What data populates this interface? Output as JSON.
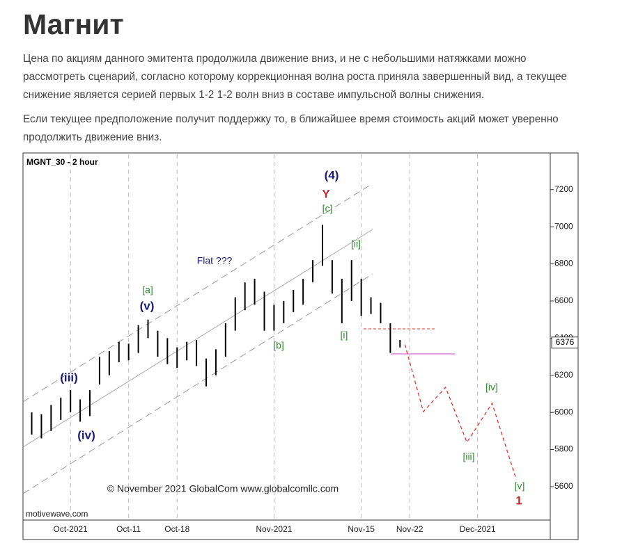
{
  "header": {
    "title": "Магнит"
  },
  "paragraphs": [
    "Цена по акциям данного эмитента продолжила движение вниз, и не с небольшими натяжками можно рассмотреть сценарий, согласно которому коррекционная волна роста приняла завершенный вид, а текущее снижение является серией первых 1-2 1-2 волн вниз в составе импульсной волны снижения.",
    "Если текущее предположение получит поддержку то, в ближайшее время стоимость акций может уверенно продолжить движение вниз."
  ],
  "chart_data": {
    "type": "ohlc",
    "title": "MGNT_30 - 2 hour",
    "watermark": "© November 2021 GlobalCom www.globalcomllc.com",
    "source": "motivewave.com",
    "xlim": [
      -4.9,
      49.5
    ],
    "xticks": [
      {
        "value": 0,
        "label": "Oct-2021"
      },
      {
        "value": 6,
        "label": "Oct-11"
      },
      {
        "value": 11,
        "label": "Oct-18"
      },
      {
        "value": 21,
        "label": "Nov-2021"
      },
      {
        "value": 30,
        "label": "Nov-15"
      },
      {
        "value": 35,
        "label": "Nov-22"
      },
      {
        "value": 42,
        "label": "Dec-2021"
      }
    ],
    "ylim": [
      5420,
      7390
    ],
    "yticks": [
      5600,
      5800,
      6000,
      6200,
      6400,
      6600,
      6800,
      7000,
      7200
    ],
    "last_price": 6376,
    "series": [
      {
        "color": "#000000",
        "x": [
          -4,
          -3,
          -2,
          -1,
          0,
          1,
          2,
          3,
          4,
          5,
          6,
          7,
          8,
          9,
          10,
          11,
          12,
          13,
          14,
          15,
          16,
          17,
          18,
          19,
          20,
          21,
          22,
          23,
          24,
          25,
          26,
          27,
          28,
          29,
          30,
          31,
          32,
          33,
          34
        ],
        "low": [
          5880,
          5860,
          5900,
          5960,
          6000,
          5950,
          5980,
          6150,
          6200,
          6270,
          6280,
          6320,
          6400,
          6300,
          6260,
          6240,
          6280,
          6250,
          6140,
          6200,
          6300,
          6440,
          6550,
          6580,
          6440,
          6440,
          6480,
          6540,
          6580,
          6700,
          6790,
          6640,
          6480,
          6600,
          6520,
          6530,
          6480,
          6320,
          6350
        ],
        "high": [
          6000,
          5990,
          6040,
          6080,
          6120,
          6070,
          6120,
          6300,
          6330,
          6380,
          6370,
          6470,
          6500,
          6440,
          6400,
          6350,
          6380,
          6390,
          6290,
          6340,
          6480,
          6620,
          6700,
          6720,
          6650,
          6580,
          6600,
          6660,
          6720,
          6820,
          7010,
          6820,
          6720,
          6820,
          6720,
          6620,
          6590,
          6480,
          6390
        ]
      },
      {
        "color": "#e8302a",
        "x": [
          34.5,
          36.4,
          38.7,
          40.9,
          43.5,
          46.0
        ],
        "values": [
          6366,
          6004,
          6135,
          5839,
          6049,
          5637
        ]
      }
    ],
    "annotations": [
      {
        "text": "(4)",
        "color": "#1a1a7a"
      },
      {
        "text": "Y",
        "color": "#c0282d"
      },
      {
        "text": "[c]",
        "color": "#2e8b2e"
      },
      {
        "text": "[ii]",
        "color": "#2e8b2e"
      },
      {
        "text": "Flat ???",
        "color": "#1a1a7a"
      },
      {
        "text": "[a]",
        "color": "#2e8b2e"
      },
      {
        "text": "(v)",
        "color": "#1a1a7a"
      },
      {
        "text": "(iii)",
        "color": "#1a1a7a"
      },
      {
        "text": "(iv)",
        "color": "#1a1a7a"
      },
      {
        "text": "[b]",
        "color": "#2e8b2e"
      },
      {
        "text": "[i]",
        "color": "#2e8b2e"
      },
      {
        "text": "[iv]",
        "color": "#2e8b2e"
      },
      {
        "text": "[iii]",
        "color": "#2e8b2e"
      },
      {
        "text": "[v]",
        "color": "#2e8b2e"
      },
      {
        "text": "1",
        "color": "#c0282d"
      }
    ]
  }
}
